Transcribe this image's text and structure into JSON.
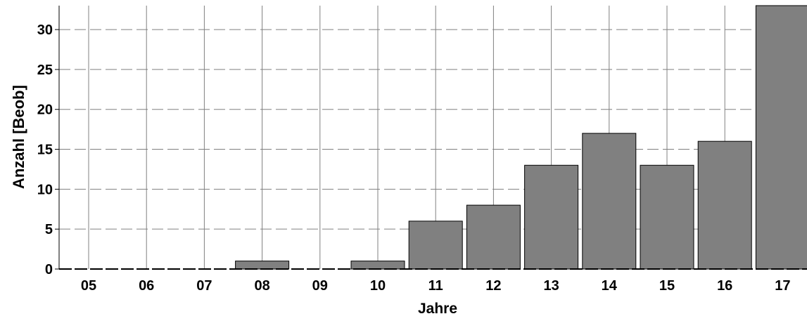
{
  "chart_data": {
    "type": "bar",
    "categories": [
      "05",
      "06",
      "07",
      "08",
      "09",
      "10",
      "11",
      "12",
      "13",
      "14",
      "15",
      "16",
      "17"
    ],
    "values": [
      0,
      0,
      0,
      1,
      0,
      1,
      6,
      8,
      13,
      17,
      13,
      16,
      33
    ],
    "xlabel": "Jahre",
    "ylabel": "Anzahl [Beob]",
    "ylim": [
      0,
      33
    ],
    "yticks": [
      0,
      5,
      10,
      15,
      20,
      25,
      30
    ],
    "grid": true,
    "colors": {
      "bar_fill": "#808080",
      "bar_stroke": "#000000",
      "grid": "#808080",
      "axis": "#000000"
    }
  }
}
